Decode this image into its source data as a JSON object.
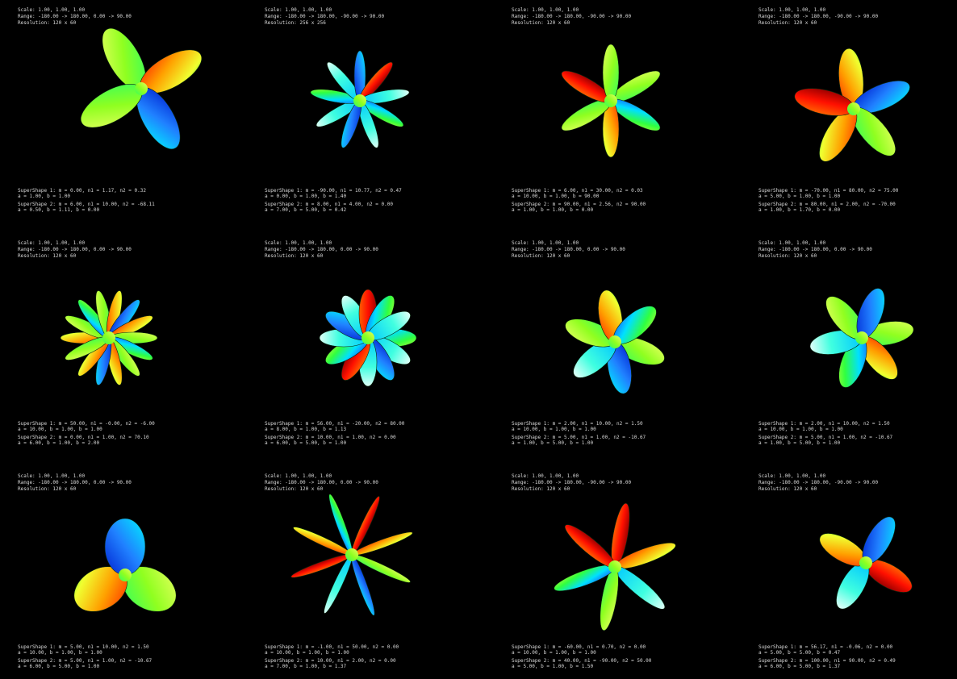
{
  "panels": [
    {
      "header": [
        "Scale:      1.00, 1.00, 1.00",
        "Range:      -180.00 -> 180.00, 0.00 -> 90.00",
        "Resolution: 120 x 60"
      ],
      "footer": [
        "SuperShape 1: m = 0.00, n1 = 1.17, n2 = 0.32",
        "   a = 1.00, b = 1.00",
        "SuperShape 2: m = 6.00, n1 = 10.00, n2 = -68.11",
        "   a = 0.50, b = 1.11, b = 0.00"
      ]
    },
    {
      "header": [
        "Scale:      1.00, 1.00, 1.00",
        "Range:      -180.00 -> 180.00, -90.00 -> 90.00",
        "Resolution: 256 x 256"
      ],
      "footer": [
        "SuperShape 1: m = -90.00, n1 = 10.77, n2 = 0.47",
        "   a = 0.00, b = 1.00, b = 1.40",
        "SuperShape 2: m = 8.00, n1 = 4.00, n2 = 0.00",
        "   a = 7.00, b = 5.00, b = 0.42"
      ]
    },
    {
      "header": [
        "Scale:      1.00, 1.00, 1.00",
        "Range:      -180.00 -> 180.00, -90.00 -> 90.00",
        "Resolution: 120 x 60"
      ],
      "footer": [
        "SuperShape 1: m = 6.00, n1 = 30.00, n2 = 0.03",
        "   a = 10.00, b = 1.00, b = 90.00",
        "SuperShape 2: m = 90.00, n1 = 2.56, n2 = 90.00",
        "   a = 1.00, b = 1.00, b = 0.00"
      ]
    },
    {
      "header": [
        "Scale:      1.00, 1.00, 1.00",
        "Range:      -180.00 -> 180.00, -90.00 -> 90.00",
        "Resolution: 120 x 60"
      ],
      "footer": [
        "SuperShape 1: m = -70.00, n1 = 80.00, n2 = 75.00",
        "   a = 5.00, b = 1.00, b = 1.00",
        "SuperShape 2: m = 80.00, n1 = 2.00, n2 = -70.00",
        "   a = 1.00, b = 1.70, b = 0.00"
      ]
    },
    {
      "header": [
        "Scale:      1.00, 1.00, 1.00",
        "Range:      -180.00 -> 180.00, 0.00 -> 90.00",
        "Resolution: 120 x 60"
      ],
      "footer": [
        "SuperShape 1: m = 50.00, n1 = -0.00, n2 = -6.00",
        "   a = 10.00, b = 1.00, b = 1.00",
        "SuperShape 2: m = 0.00, n1 = 1.00, n2 = 70.10",
        "   a = 6.00, b = 1.00, b = 2.00"
      ]
    },
    {
      "header": [
        "Scale:      1.00, 1.00, 1.00",
        "Range:      -180.00 -> 180.00, 0.00 -> 90.00",
        "Resolution: 120 x 60"
      ],
      "footer": [
        "SuperShape 1: m = 56.00, n1 = -20.00, n2 = 80.00",
        "   a = 8.00, b = 1.00, b = 1.13",
        "SuperShape 2: m = 10.00, n1 = 1.00, n2 = 0.00",
        "   a = 6.00, b = 5.00, b = 1.00"
      ]
    },
    {
      "header": [
        "Scale:      1.00, 1.00, 1.00",
        "Range:      -180.00 -> 180.00, 0.00 -> 90.00",
        "Resolution: 120 x 60"
      ],
      "footer": [
        "SuperShape 1: m = 2.00, n1 = 10.00, n2 = 1.50",
        "   a = 10.00, b = 1.00, b = 1.00",
        "SuperShape 2: m = 5.00, n1 = 1.00, n2 = -10.67",
        "   a = 1.00, b = 5.00, b = 1.00"
      ]
    },
    {
      "header": [
        "Scale:      1.00, 1.00, 1.00",
        "Range:      -180.00 -> 180.00, 0.00 -> 90.00",
        "Resolution: 120 x 60"
      ],
      "footer": [
        "SuperShape 1: m = 2.00, n1 = 10.00, n2 = 1.50",
        "   a = 10.00, b = 1.00, b = 1.00",
        "SuperShape 2: m = 5.00, n1 = 1.00, n2 = -10.67",
        "   a = 1.00, b = 5.00, b = 1.00"
      ]
    },
    {
      "header": [
        "Scale:      1.00, 1.00, 1.00",
        "Range:      -180.00 -> 180.00, 0.00 -> 90.00",
        "Resolution: 120 x 60"
      ],
      "footer": [
        "SuperShape 1: m = 5.00, n1 = 10.00, n2 = 1.50",
        "   a = 10.00, b = 1.00, b = 1.00",
        "SuperShape 2: m = 5.00, n1 = 1.00, n2 = -10.67",
        "   a = 6.00, b = 5.00, b = 1.00"
      ]
    },
    {
      "header": [
        "Scale:      1.00, 1.00, 1.00",
        "Range:      -180.00 -> 180.00, 0.00 -> 90.00",
        "Resolution: 120 x 60"
      ],
      "footer": [
        "SuperShape 1: m = -1.00, n1 = 50.00, n2 = 0.00",
        "   a = 10.00, b = 1.00, b = 1.00",
        "SuperShape 2: m = 10.00, n1 = 2.00, n2 = 0.00",
        "   a = 7.00, b = 1.00, b = 1.37"
      ]
    },
    {
      "header": [
        "Scale:      1.00, 1.00, 1.00",
        "Range:      -180.00 -> 180.00, -90.00 -> 90.00",
        "Resolution: 120 x 60"
      ],
      "footer": [
        "SuperShape 1: m = -60.00, n1 = 0.70, n2 = 0.00",
        "   a = 10.00, b = 1.00, b = 1.00",
        "SuperShape 2: m = 40.00, n1 = -90.00, n2 = 50.00",
        "   a = 5.00, b = 1.00, b = 1.50"
      ]
    },
    {
      "header": [
        "Scale:      1.00, 1.00, 1.00",
        "Range:      -180.00 -> 180.00, -90.00 -> 90.00",
        "Resolution: 120 x 60"
      ],
      "footer": [
        "SuperShape 1: m = 56.17, n1 = -0.06, n2 = 0.00",
        "   a = 5.00, b = 5.00, b = 0.47",
        "SuperShape 2: m = 100.00, n1 = 90.00, n2 = 0.49",
        "   a = 6.00, b = 5.00, b = 1.37"
      ]
    }
  ]
}
